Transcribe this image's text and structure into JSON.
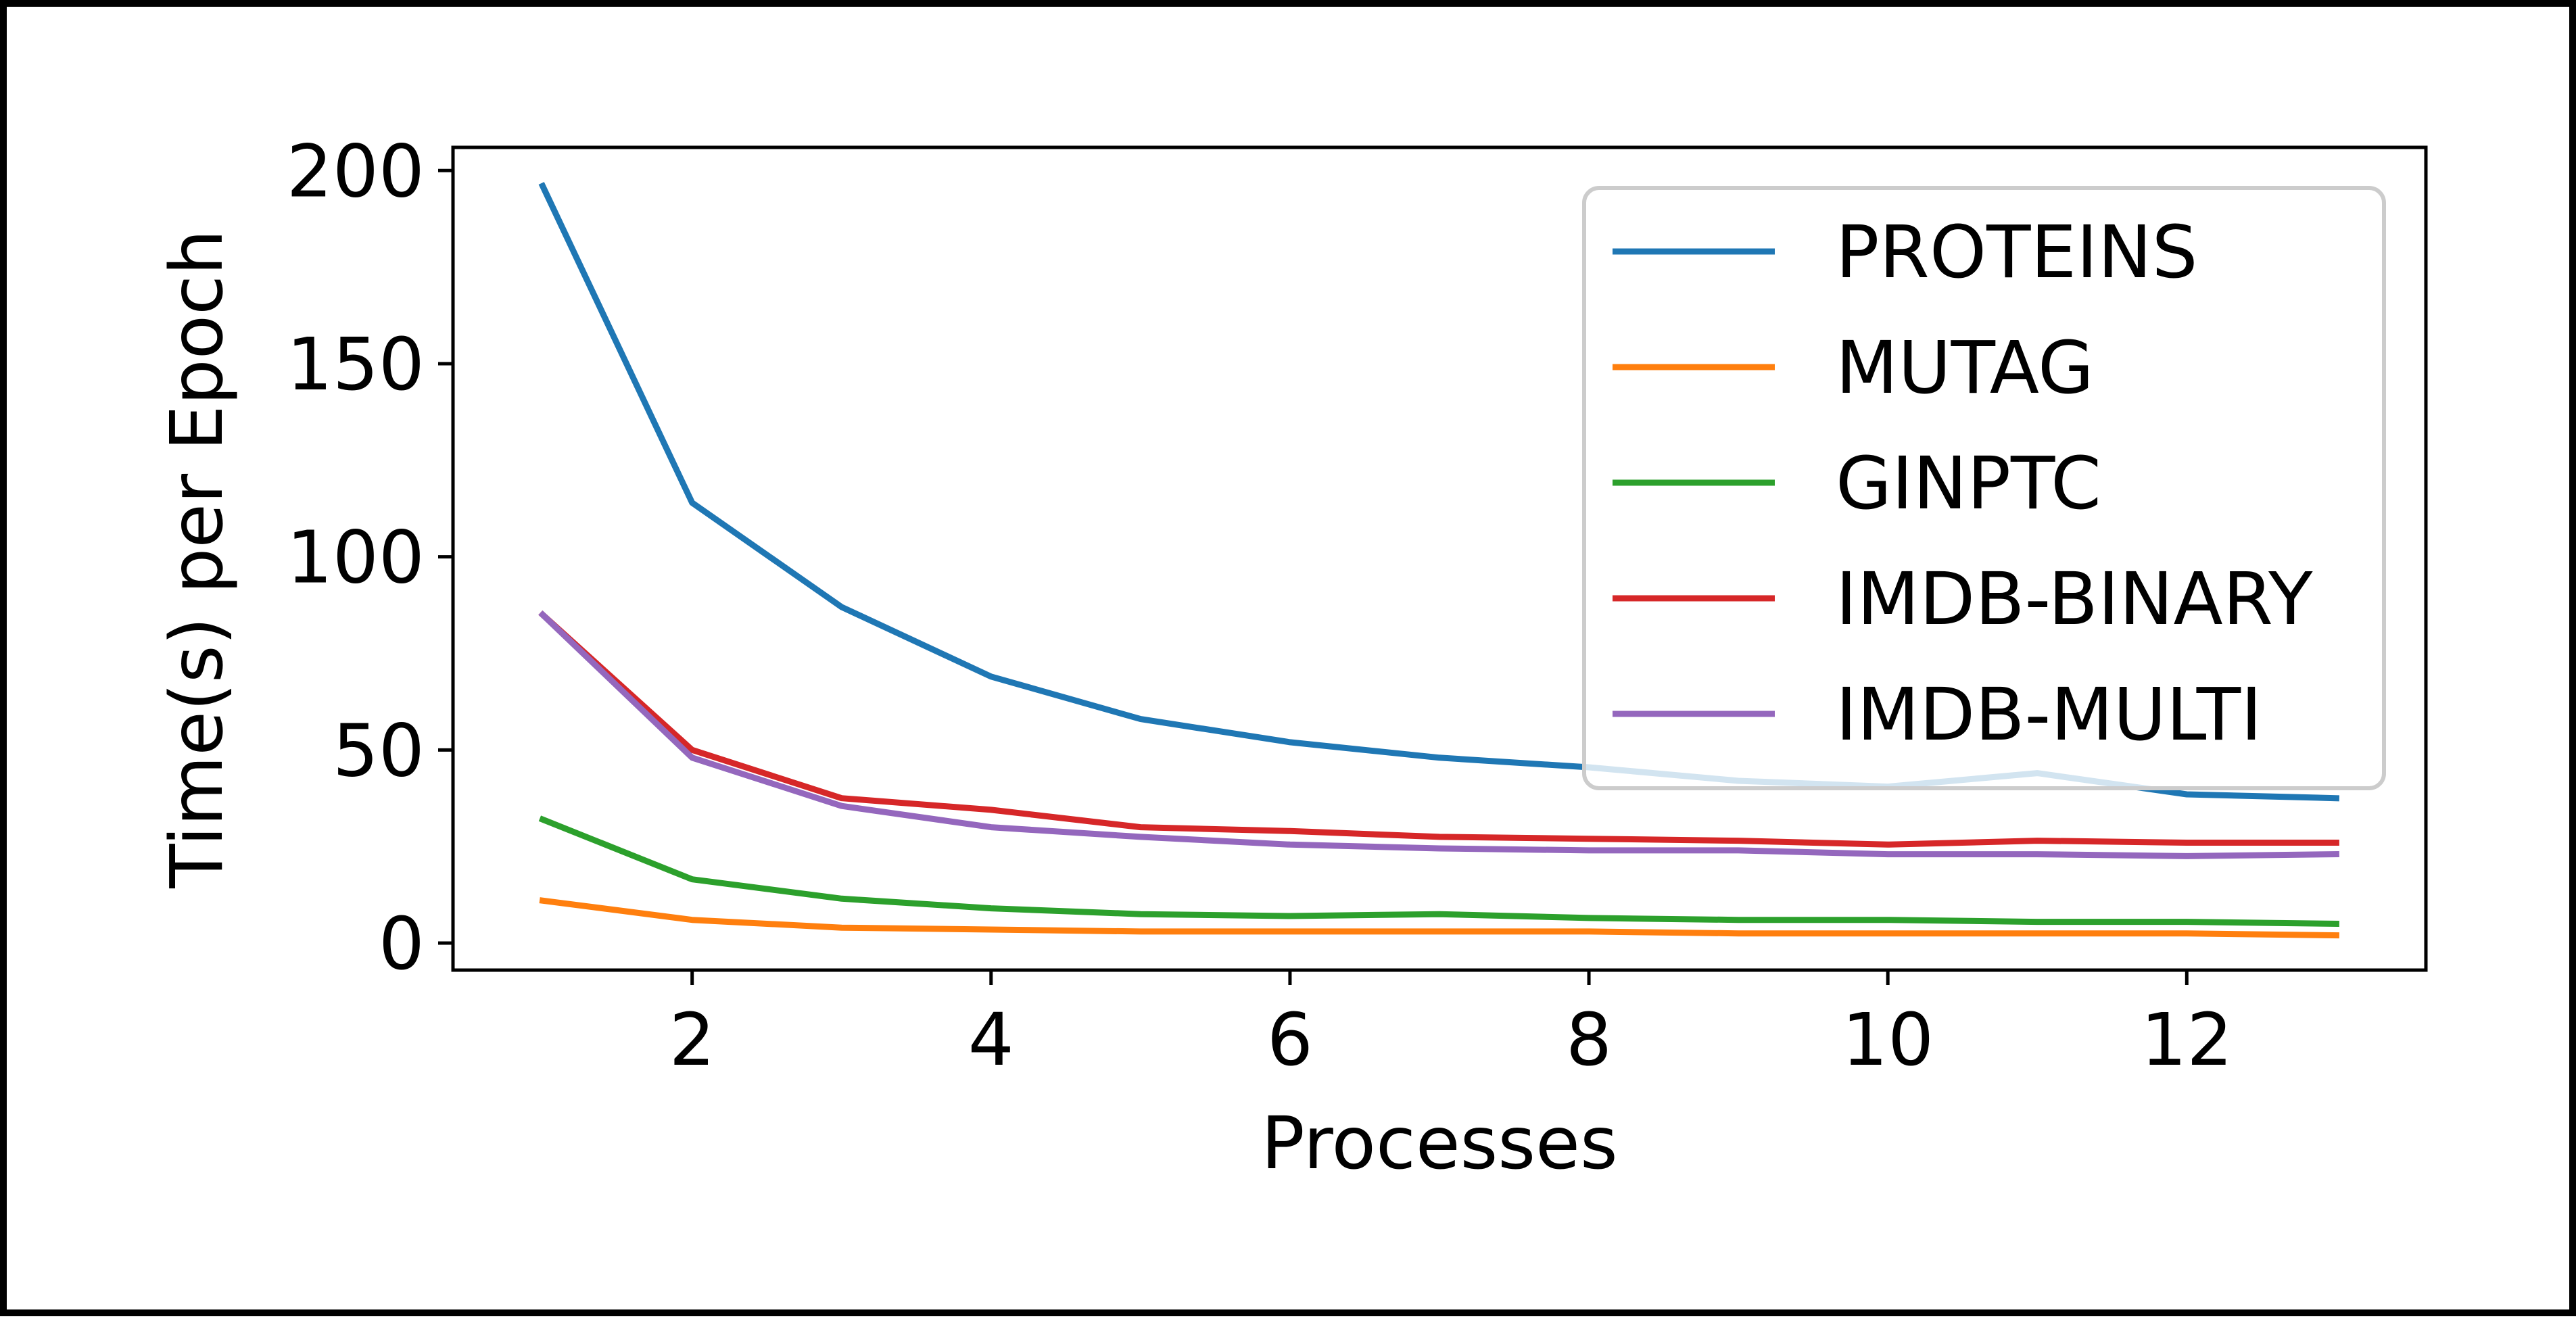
{
  "chart_data": {
    "type": "line",
    "title": "",
    "xlabel": "Processes",
    "ylabel": "Time(s) per Epoch",
    "xlim": [
      0.4,
      13.6
    ],
    "ylim": [
      -7,
      206
    ],
    "x_ticks": [
      2,
      4,
      6,
      8,
      10,
      12
    ],
    "y_ticks": [
      0,
      50,
      100,
      150,
      200
    ],
    "grid": false,
    "legend_position": "top-right",
    "x": [
      1,
      2,
      3,
      4,
      5,
      6,
      7,
      8,
      9,
      10,
      11,
      12,
      13
    ],
    "series": [
      {
        "name": "PROTEINS",
        "color": "#1f77b4",
        "values": [
          196,
          114,
          87,
          69,
          58,
          52,
          48,
          45.5,
          42,
          40.5,
          44,
          38.5,
          37.5
        ]
      },
      {
        "name": "MUTAG",
        "color": "#ff7f0e",
        "values": [
          11,
          6,
          4,
          3.5,
          3,
          3,
          3,
          3,
          2.5,
          2.5,
          2.5,
          2.5,
          2
        ]
      },
      {
        "name": "GINPTC",
        "color": "#2ca02c",
        "values": [
          32,
          16.5,
          11.5,
          9,
          7.5,
          7,
          7.5,
          6.5,
          6,
          6,
          5.5,
          5.5,
          5
        ]
      },
      {
        "name": "IMDB-BINARY",
        "color": "#d62728",
        "values": [
          85,
          50,
          37.5,
          34.5,
          30,
          29,
          27.5,
          27,
          26.5,
          25.5,
          26.5,
          26,
          26
        ]
      },
      {
        "name": "IMDB-MULTI",
        "color": "#9467bd",
        "values": [
          85,
          48,
          35.5,
          30,
          27.5,
          25.5,
          24.5,
          24,
          24,
          23,
          23,
          22.5,
          23
        ]
      }
    ]
  }
}
